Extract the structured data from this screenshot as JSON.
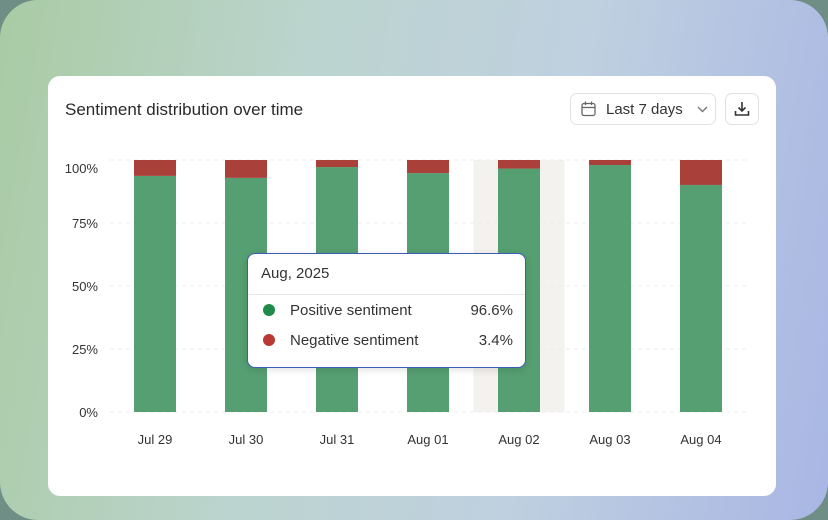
{
  "card": {
    "title": "Sentiment distribution over time",
    "range_label": "Last 7 days",
    "icons": {
      "calendar": "calendar-icon",
      "chevron": "chevron-down-icon",
      "download": "download-icon"
    }
  },
  "colors": {
    "positive": "#559f72",
    "negative": "#a9403a",
    "highlight": "#f3f2ee",
    "tooltip_border": "#3b5db8"
  },
  "tooltip": {
    "title": "Aug, 2025",
    "rows": [
      {
        "label": "Positive sentiment",
        "value": "96.6%"
      },
      {
        "label": "Negative sentiment",
        "value": "3.4%"
      }
    ]
  },
  "chart_data": {
    "type": "bar",
    "stacked": true,
    "categories": [
      "Jul 29",
      "Jul 30",
      "Jul 31",
      "Aug 01",
      "Aug 02",
      "Aug 03",
      "Aug 04"
    ],
    "series": [
      {
        "name": "Positive sentiment",
        "values": [
          93.7,
          92.9,
          97.2,
          94.8,
          96.6,
          98.0,
          90.1
        ]
      },
      {
        "name": "Negative sentiment",
        "values": [
          6.3,
          7.1,
          2.8,
          5.2,
          3.4,
          2.0,
          9.9
        ]
      }
    ],
    "yticks": [
      "0%",
      "25%",
      "50%",
      "75%",
      "100%"
    ],
    "ylim": [
      0,
      100
    ],
    "highlighted_category": "Aug 02",
    "grid": true
  }
}
